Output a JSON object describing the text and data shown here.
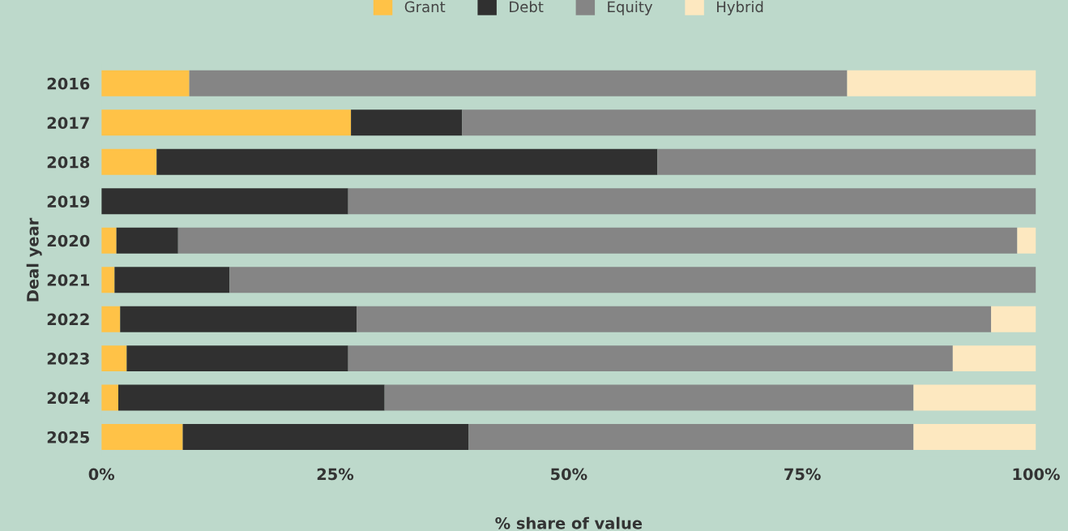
{
  "chart_data": {
    "type": "bar",
    "orientation": "horizontal",
    "stacked": true,
    "xlabel": "% share of value",
    "ylabel": "Deal year",
    "categories": [
      "2016",
      "2017",
      "2018",
      "2019",
      "2020",
      "2021",
      "2022",
      "2023",
      "2024",
      "2025"
    ],
    "series": [
      {
        "name": "Grant",
        "color": "#ffc247",
        "values": [
          9.4,
          26.7,
          5.9,
          0,
          1.6,
          1.4,
          2.0,
          2.7,
          1.8,
          8.7
        ]
      },
      {
        "name": "Debt",
        "color": "#303030",
        "values": [
          0,
          11.9,
          53.6,
          26.4,
          6.6,
          12.3,
          25.3,
          23.7,
          28.5,
          30.6
        ]
      },
      {
        "name": "Equity",
        "color": "#858585",
        "values": [
          70.4,
          61.4,
          40.5,
          73.6,
          89.8,
          86.3,
          67.9,
          64.7,
          56.6,
          47.6
        ]
      },
      {
        "name": "Hybrid",
        "color": "#fde8c0",
        "values": [
          20.2,
          0,
          0,
          0,
          2.0,
          0,
          4.8,
          8.9,
          13.1,
          13.1
        ]
      }
    ],
    "xlim": [
      0,
      100
    ],
    "xticks": [
      {
        "value": 0,
        "label": "0%"
      },
      {
        "value": 25,
        "label": "25%"
      },
      {
        "value": 50,
        "label": "50%"
      },
      {
        "value": 75,
        "label": "75%"
      },
      {
        "value": 100,
        "label": "100%"
      }
    ],
    "grid": false,
    "legend": "top"
  }
}
